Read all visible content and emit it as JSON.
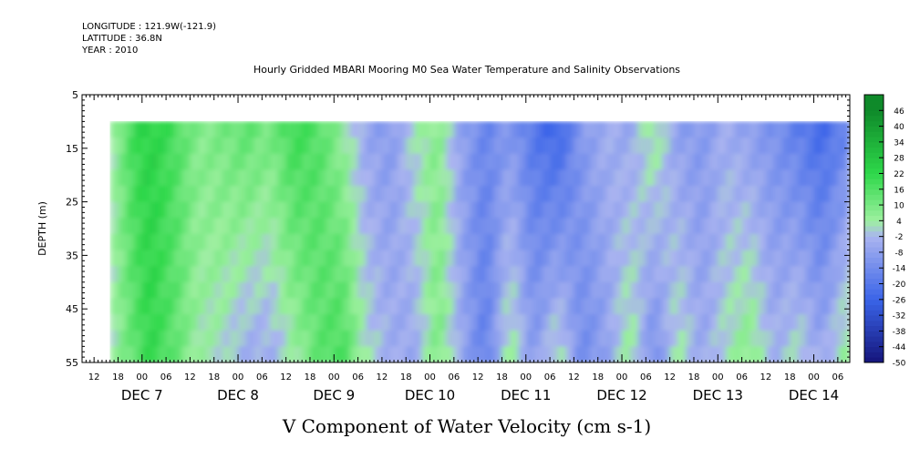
{
  "header": {
    "longitude": "LONGITUDE : 121.9W(-121.9)",
    "latitude": "LATITUDE : 36.8N",
    "year": "YEAR : 2010"
  },
  "chart_data": {
    "type": "heatmap",
    "title": "Hourly Gridded MBARI Mooring M0 Sea Water Temperature and Salinity Observations",
    "xlabel": "V Component of Water Velocity (cm s-1)",
    "ylabel": "DEPTH (m)",
    "ylim": [
      5,
      55
    ],
    "y_inverted": true,
    "y_ticks": [
      "5",
      "15",
      "25",
      "35",
      "45",
      "55"
    ],
    "data_depth_range_m": [
      10,
      55
    ],
    "x_hour_ticks": [
      "12",
      "18",
      "00",
      "06",
      "12",
      "18",
      "00",
      "06",
      "12",
      "18",
      "00",
      "06",
      "12",
      "18",
      "00",
      "06",
      "12",
      "18",
      "00",
      "06",
      "12",
      "18",
      "00",
      "06",
      "12",
      "18",
      "00",
      "06",
      "12",
      "18",
      "00",
      "06"
    ],
    "x_day_labels": [
      "DEC 7",
      "DEC 8",
      "DEC 9",
      "DEC 10",
      "DEC 11",
      "DEC 12",
      "DEC 13",
      "DEC 14"
    ],
    "x_start": "DEC 6 09:00",
    "x_end": "DEC 14 09:00",
    "data_start": "DEC 6 16:00",
    "colorbar_labels": [
      "46",
      "40",
      "34",
      "28",
      "22",
      "16",
      "10",
      "4",
      "-2",
      "-8",
      "-14",
      "-20",
      "-26",
      "-32",
      "-38",
      "-44",
      "-50"
    ],
    "colorbar_range": [
      -50,
      52
    ],
    "colors": {
      "strong_positive": "#0f8a2a",
      "positive": "#2ed84a",
      "weak_positive": "#9ef0a0",
      "weak_negative": "#aab4f0",
      "negative": "#3a64e8",
      "strong_negative": "#14147a"
    },
    "columns": [
      {
        "time": "DEC 6 16:00",
        "top": 2,
        "bottom": 2
      },
      {
        "time": "DEC 6 22:00",
        "top": 20,
        "bottom": 14
      },
      {
        "time": "DEC 7 02:00",
        "top": 24,
        "bottom": 22
      },
      {
        "time": "DEC 7 08:00",
        "top": 18,
        "bottom": 14
      },
      {
        "time": "DEC 7 14:00",
        "top": 8,
        "bottom": 4
      },
      {
        "time": "DEC 7 20:00",
        "top": 10,
        "bottom": 2
      },
      {
        "time": "DEC 8 02:00",
        "top": 14,
        "bottom": -4
      },
      {
        "time": "DEC 8 08:00",
        "top": 10,
        "bottom": -4
      },
      {
        "time": "DEC 8 14:00",
        "top": 20,
        "bottom": 4
      },
      {
        "time": "DEC 8 20:00",
        "top": 16,
        "bottom": 14
      },
      {
        "time": "DEC 9 02:00",
        "top": 6,
        "bottom": 18
      },
      {
        "time": "DEC 9 08:00",
        "top": -6,
        "bottom": 2
      },
      {
        "time": "DEC 9 14:00",
        "top": -10,
        "bottom": -4
      },
      {
        "time": "DEC 9 20:00",
        "top": 2,
        "bottom": -6
      },
      {
        "time": "DEC 10 02:00",
        "top": 8,
        "bottom": 10
      },
      {
        "time": "DEC 10 08:00",
        "top": -8,
        "bottom": -6
      },
      {
        "time": "DEC 10 14:00",
        "top": -16,
        "bottom": -18
      },
      {
        "time": "DEC 10 20:00",
        "top": -10,
        "bottom": 6
      },
      {
        "time": "DEC 11 02:00",
        "top": -20,
        "bottom": -10
      },
      {
        "time": "DEC 11 08:00",
        "top": -26,
        "bottom": 4
      },
      {
        "time": "DEC 11 14:00",
        "top": -10,
        "bottom": -14
      },
      {
        "time": "DEC 11 20:00",
        "top": -4,
        "bottom": -8
      },
      {
        "time": "DEC 12 02:00",
        "top": -6,
        "bottom": 6
      },
      {
        "time": "DEC 12 08:00",
        "top": 6,
        "bottom": -14
      },
      {
        "time": "DEC 12 14:00",
        "top": -8,
        "bottom": 4
      },
      {
        "time": "DEC 12 20:00",
        "top": -10,
        "bottom": -6
      },
      {
        "time": "DEC 13 02:00",
        "top": -4,
        "bottom": 2
      },
      {
        "time": "DEC 13 08:00",
        "top": -8,
        "bottom": 8
      },
      {
        "time": "DEC 13 14:00",
        "top": -12,
        "bottom": -4
      },
      {
        "time": "DEC 13 20:00",
        "top": -18,
        "bottom": 2
      },
      {
        "time": "DEC 14 02:00",
        "top": -24,
        "bottom": -6
      },
      {
        "time": "DEC 14 08:00",
        "top": -16,
        "bottom": 6
      }
    ]
  }
}
